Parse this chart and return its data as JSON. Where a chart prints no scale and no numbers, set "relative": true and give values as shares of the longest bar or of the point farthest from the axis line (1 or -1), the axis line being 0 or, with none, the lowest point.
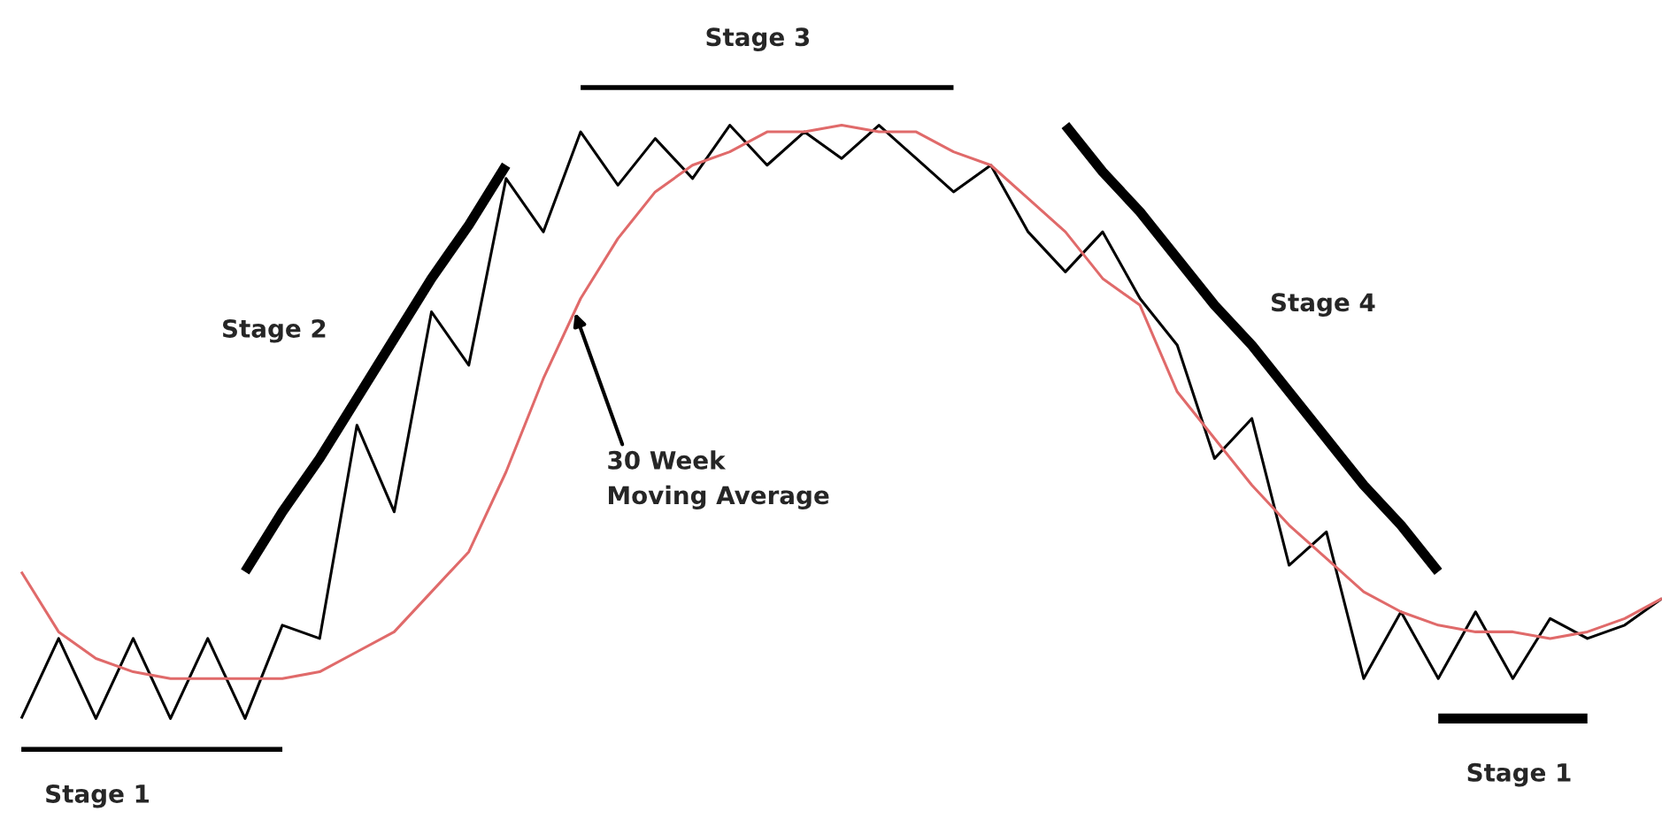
{
  "chart_data": {
    "type": "line",
    "relative": true,
    "categories": [
      null,
      null,
      null,
      null,
      null,
      null,
      null,
      null,
      null,
      null,
      null,
      null,
      null,
      null,
      null,
      null,
      null,
      null,
      null,
      null,
      null,
      null,
      null,
      null,
      null,
      null,
      null,
      null,
      null,
      null,
      null,
      null,
      null,
      null,
      null,
      null,
      null,
      null,
      null,
      null,
      null,
      null,
      null,
      null,
      null
    ],
    "series": [
      {
        "color": "#000000",
        "values": [
          0.05,
          0.17,
          0.05,
          0.17,
          0.05,
          0.17,
          0.05,
          0.19,
          0.17,
          0.49,
          0.36,
          0.66,
          0.58,
          0.86,
          0.78,
          0.93,
          0.85,
          0.92,
          0.86,
          0.94,
          0.88,
          0.93,
          0.89,
          0.94,
          0.89,
          0.84,
          0.88,
          0.78,
          0.72,
          0.78,
          0.68,
          0.61,
          0.44,
          0.5,
          0.28,
          0.33,
          0.11,
          0.21,
          0.11,
          0.21,
          0.11,
          0.2,
          0.17,
          0.19,
          0.23
        ]
      },
      {
        "color": "#e06a6a",
        "values": [
          0.27,
          0.18,
          0.14,
          0.12,
          0.11,
          0.11,
          0.11,
          0.11,
          0.12,
          0.15,
          0.18,
          0.24,
          0.3,
          0.42,
          0.56,
          0.68,
          0.77,
          0.84,
          0.88,
          0.9,
          0.93,
          0.93,
          0.94,
          0.93,
          0.93,
          0.9,
          0.88,
          0.83,
          0.78,
          0.71,
          0.67,
          0.54,
          0.47,
          0.4,
          0.34,
          0.29,
          0.24,
          0.21,
          0.19,
          0.18,
          0.18,
          0.17,
          0.18,
          0.2,
          0.23
        ]
      },
      {
        "color": "#000000",
        "values": [
          0,
          0,
          0,
          0,
          0,
          0,
          0,
          0,
          null,
          null,
          null,
          null,
          null,
          null,
          null,
          null,
          null,
          null,
          null,
          null,
          null,
          null,
          null,
          null,
          null,
          null,
          null,
          null,
          null,
          null,
          null,
          null,
          null,
          null,
          null,
          null,
          null,
          null,
          null,
          null,
          null,
          null,
          null,
          null,
          null
        ]
      },
      {
        "color": "#000000",
        "values": [
          null,
          null,
          null,
          null,
          null,
          null,
          0.27,
          0.36,
          0.44,
          0.53,
          0.62,
          0.71,
          0.79,
          0.88,
          null,
          null,
          null,
          null,
          null,
          null,
          null,
          null,
          null,
          null,
          null,
          null,
          null,
          null,
          null,
          null,
          null,
          null,
          null,
          null,
          null,
          null,
          null,
          null,
          null,
          null,
          null,
          null,
          null,
          null,
          null
        ]
      },
      {
        "color": "#000000",
        "values": [
          null,
          null,
          null,
          null,
          null,
          null,
          null,
          null,
          null,
          null,
          null,
          null,
          null,
          null,
          null,
          1,
          1,
          1,
          1,
          1,
          1,
          1,
          1,
          1,
          1,
          1,
          null,
          null,
          null,
          null,
          null,
          null,
          null,
          null,
          null,
          null,
          null,
          null,
          null,
          null,
          null,
          null,
          null,
          null,
          null
        ]
      },
      {
        "color": "#000000",
        "values": [
          null,
          null,
          null,
          null,
          null,
          null,
          null,
          null,
          null,
          null,
          null,
          null,
          null,
          null,
          null,
          null,
          null,
          null,
          null,
          null,
          null,
          null,
          null,
          null,
          null,
          null,
          null,
          null,
          0.94,
          0.87,
          0.81,
          0.74,
          0.67,
          0.61,
          0.54,
          0.47,
          0.4,
          0.34,
          0.27,
          null,
          null,
          null,
          null,
          null,
          null
        ]
      },
      {
        "color": "#000000",
        "values": [
          null,
          null,
          null,
          null,
          null,
          null,
          null,
          null,
          null,
          null,
          null,
          null,
          null,
          null,
          null,
          null,
          null,
          null,
          null,
          null,
          null,
          null,
          null,
          null,
          null,
          null,
          null,
          null,
          null,
          null,
          null,
          null,
          null,
          null,
          null,
          null,
          null,
          null,
          0.05,
          0.05,
          0.05,
          0.05,
          0.05,
          null,
          null
        ]
      }
    ],
    "annotations": [
      "Stage 1",
      "Stage 2",
      "Stage 3",
      "Stage 4",
      "Stage 1",
      "30 Week\nMoving Average"
    ]
  }
}
